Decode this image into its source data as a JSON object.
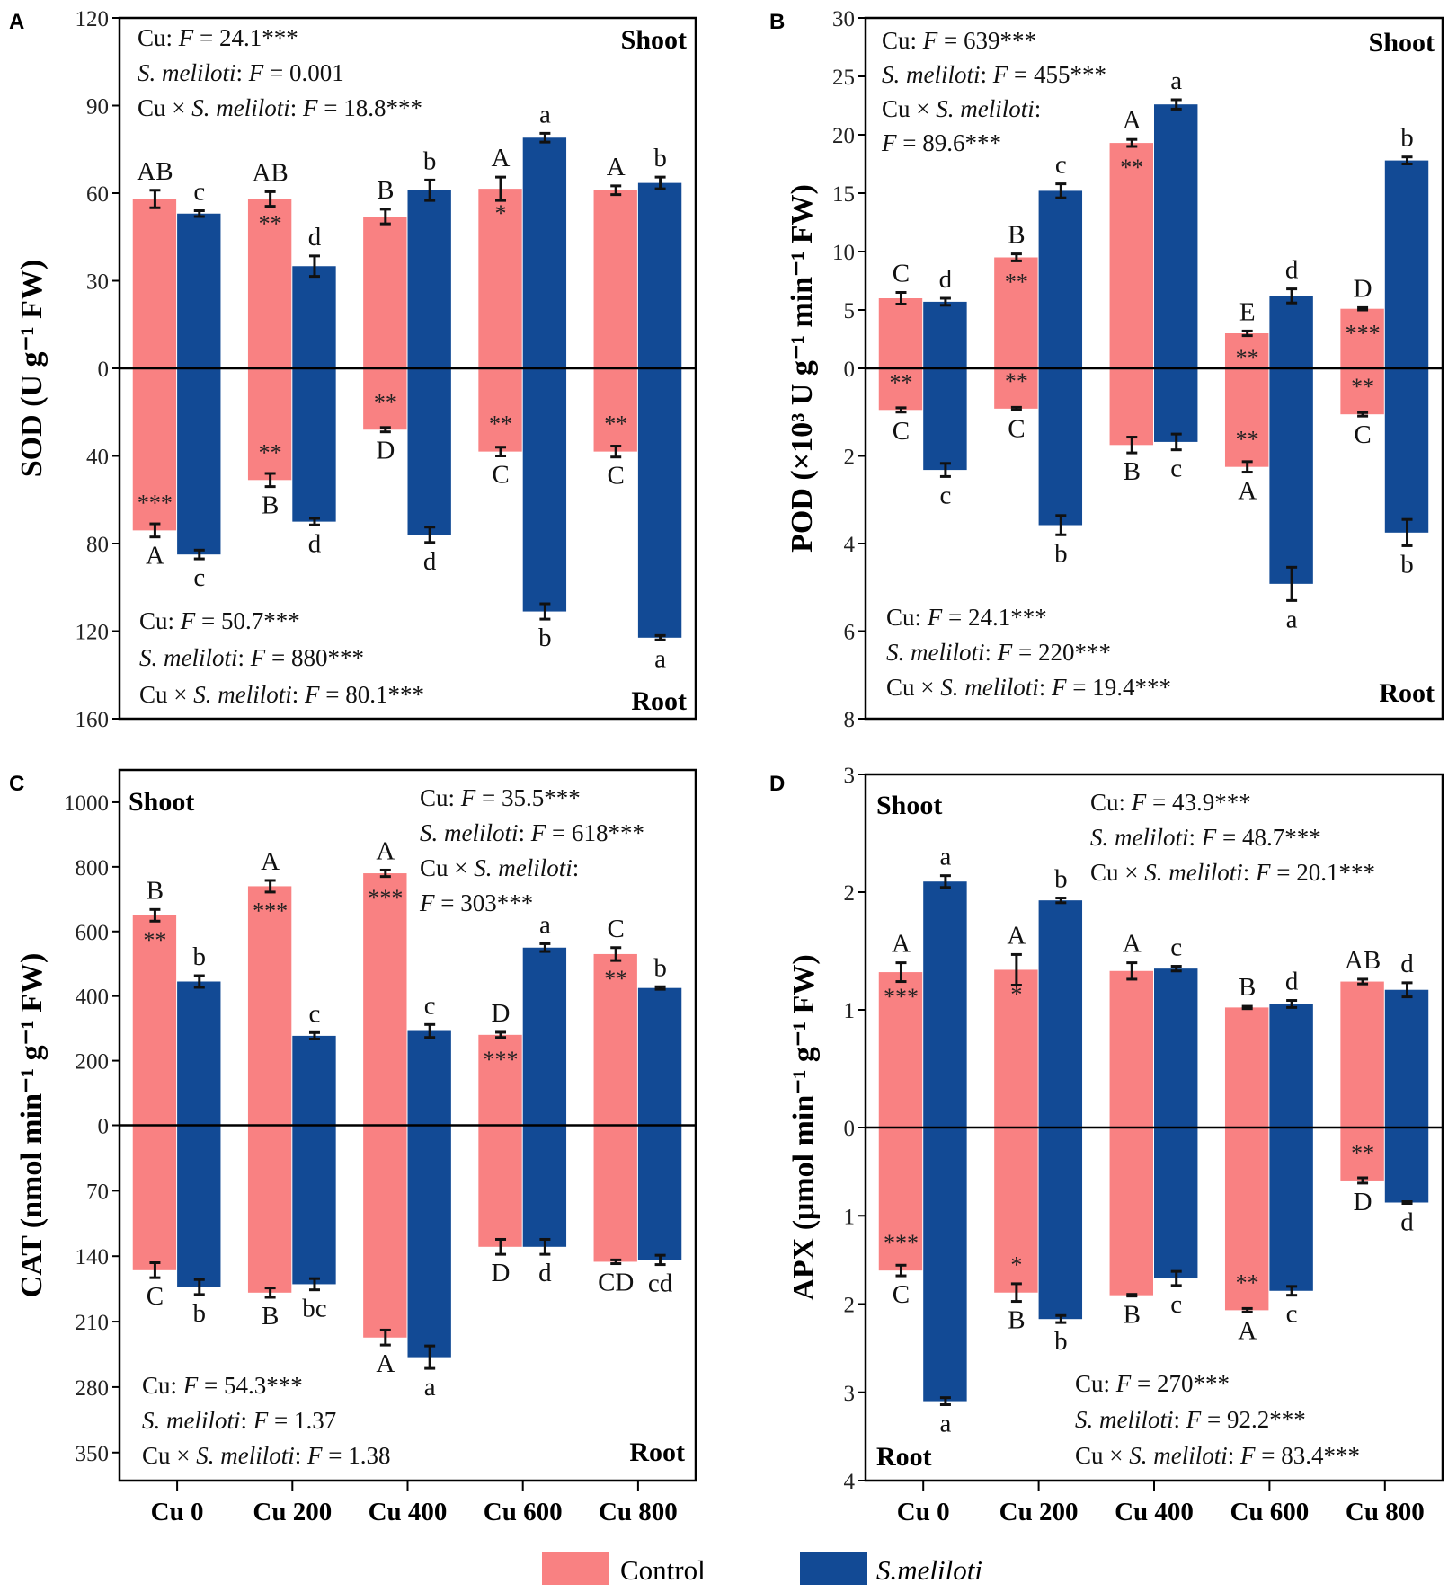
{
  "colors": {
    "control": "#F98182",
    "s_meliloti": "#124A95",
    "axis": "#000000"
  },
  "legend": {
    "placement": "bottom-center",
    "items": [
      {
        "label": "Control",
        "color": "#F98182"
      },
      {
        "label": "S.meliloti",
        "color": "#124A95"
      }
    ]
  },
  "chart_data": [
    {
      "type": "bar",
      "panel": "A",
      "ylabel": "SOD (U g⁻¹ FW)",
      "categories": [
        "Cu 0",
        "Cu 200",
        "Cu 400",
        "Cu 600",
        "Cu 800"
      ],
      "shoot_label": "Shoot",
      "root_label": "Root",
      "shoot_ylim": [
        0,
        120
      ],
      "root_ylim": [
        0,
        160
      ],
      "shoot_ticks": [
        "0",
        "30",
        "60",
        "90",
        "120"
      ],
      "root_ticks": [
        "40",
        "80",
        "120",
        "160"
      ],
      "shoot": {
        "control": {
          "values": [
            58,
            58,
            52,
            61.5,
            61
          ],
          "errors": [
            3,
            2.5,
            2.5,
            4,
            1.5
          ],
          "letters": [
            "AB",
            "AB",
            "B",
            "A",
            "A"
          ],
          "stars": [
            "",
            "**",
            "",
            "*",
            ""
          ]
        },
        "s_meliloti": {
          "values": [
            53,
            35,
            61,
            79,
            63.5
          ],
          "errors": [
            1,
            3.5,
            3.5,
            1.5,
            2
          ],
          "letters": [
            "c",
            "d",
            "b",
            "a",
            "b"
          ]
        }
      },
      "root": {
        "control": {
          "values": [
            74,
            51,
            28,
            38,
            38
          ],
          "errors": [
            3,
            3,
            1,
            2,
            2.5
          ],
          "letters": [
            "A",
            "B",
            "D",
            "C",
            "C"
          ],
          "stars": [
            "***",
            "**",
            "**",
            "**",
            "**"
          ]
        },
        "s_meliloti": {
          "values": [
            85,
            70,
            76,
            111,
            123
          ],
          "errors": [
            2,
            1.5,
            3.5,
            3.5,
            1
          ],
          "letters": [
            "c",
            "d",
            "d",
            "b",
            "a"
          ]
        }
      },
      "shoot_stats": [
        "Cu: F = 24.1***",
        "S. meliloti: F = 0.001",
        "Cu × S. meliloti: F = 18.8***"
      ],
      "root_stats": [
        "Cu: F = 50.7***",
        "S. meliloti: F = 880***",
        "Cu × S. meliloti: F = 80.1***"
      ]
    },
    {
      "type": "bar",
      "panel": "B",
      "ylabel": "POD (×10³ U g⁻¹ min⁻¹ FW)",
      "categories": [
        "Cu 0",
        "Cu 200",
        "Cu 400",
        "Cu 600",
        "Cu 800"
      ],
      "shoot_label": "Shoot",
      "root_label": "Root",
      "shoot_ylim": [
        0,
        30
      ],
      "root_ylim": [
        0,
        8
      ],
      "shoot_ticks": [
        "0",
        "5",
        "10",
        "15",
        "20",
        "25",
        "30"
      ],
      "root_ticks": [
        "2",
        "4",
        "6",
        "8"
      ],
      "shoot": {
        "control": {
          "values": [
            6,
            9.5,
            19.3,
            3,
            5.1
          ],
          "errors": [
            0.5,
            0.3,
            0.3,
            0.2,
            0.1
          ],
          "letters": [
            "C",
            "B",
            "A",
            "E",
            "D"
          ],
          "stars": [
            "",
            "**",
            "**",
            "**",
            "***"
          ]
        },
        "s_meliloti": {
          "values": [
            5.7,
            15.2,
            22.6,
            6.2,
            17.8
          ],
          "errors": [
            0.3,
            0.6,
            0.4,
            0.6,
            0.3
          ],
          "letters": [
            "d",
            "c",
            "a",
            "d",
            "b"
          ]
        }
      },
      "root": {
        "control": {
          "values": [
            0.95,
            0.92,
            1.75,
            2.25,
            1.05
          ],
          "errors": [
            0.05,
            0.03,
            0.18,
            0.12,
            0.04
          ],
          "letters": [
            "C",
            "C",
            "B",
            "A",
            "C"
          ],
          "stars": [
            "**",
            "**",
            "",
            "**",
            "**"
          ]
        },
        "s_meliloti": {
          "values": [
            2.32,
            3.58,
            1.68,
            4.92,
            3.75
          ],
          "errors": [
            0.15,
            0.22,
            0.18,
            0.38,
            0.3
          ],
          "letters": [
            "c",
            "b",
            "c",
            "a",
            "b"
          ]
        }
      },
      "shoot_stats": [
        "Cu: F = 639***",
        "S. meliloti: F = 455***",
        "Cu × S. meliloti:",
        "F = 89.6***"
      ],
      "root_stats": [
        "Cu: F = 24.1***",
        "S. meliloti: F = 220***",
        "Cu × S. meliloti: F = 19.4***"
      ]
    },
    {
      "type": "bar",
      "panel": "C",
      "ylabel": "CAT (nmol min⁻¹ g⁻¹ FW)",
      "categories": [
        "Cu 0",
        "Cu 200",
        "Cu 400",
        "Cu 600",
        "Cu 800"
      ],
      "shoot_label": "Shoot",
      "root_label": "Root",
      "shoot_ylim": [
        0,
        1100
      ],
      "root_ylim": [
        0,
        380
      ],
      "shoot_ticks": [
        "0",
        "200",
        "400",
        "600",
        "800",
        "1000"
      ],
      "root_ticks": [
        "70",
        "140",
        "210",
        "280",
        "350"
      ],
      "shoot": {
        "control": {
          "values": [
            650,
            740,
            780,
            280,
            530
          ],
          "errors": [
            18,
            18,
            10,
            8,
            20
          ],
          "letters": [
            "B",
            "A",
            "A",
            "D",
            "C"
          ],
          "stars": [
            "**",
            "***",
            "***",
            "***",
            "**"
          ]
        },
        "s_meliloti": {
          "values": [
            445,
            277,
            292,
            550,
            425
          ],
          "errors": [
            18,
            10,
            20,
            12,
            4
          ],
          "letters": [
            "b",
            "c",
            "c",
            "a",
            "b"
          ]
        }
      },
      "root": {
        "control": {
          "values": [
            155,
            179,
            227,
            130,
            146
          ],
          "errors": [
            8,
            5,
            8,
            8,
            2
          ],
          "letters": [
            "C",
            "B",
            "A",
            "D",
            "CD"
          ],
          "stars": [
            "",
            "",
            "",
            "",
            ""
          ]
        },
        "s_meliloti": {
          "values": [
            173,
            170,
            248,
            130,
            144
          ],
          "errors": [
            8,
            6,
            12,
            8,
            5
          ],
          "letters": [
            "b",
            "bc",
            "a",
            "d",
            "cd"
          ]
        }
      },
      "shoot_stats": [
        "Cu: F = 35.5***",
        "S. meliloti: F = 618***",
        "Cu × S. meliloti:",
        "F = 303***"
      ],
      "root_stats": [
        "Cu: F = 54.3***",
        "S. meliloti: F = 1.37",
        "Cu × S. meliloti: F = 1.38"
      ]
    },
    {
      "type": "bar",
      "panel": "D",
      "ylabel": "APX (μmol min⁻¹ g⁻¹ FW)",
      "categories": [
        "Cu 0",
        "Cu 200",
        "Cu 400",
        "Cu 600",
        "Cu 800"
      ],
      "shoot_label": "Shoot",
      "root_label": "Root",
      "shoot_ylim": [
        0,
        3
      ],
      "root_ylim": [
        0,
        4
      ],
      "shoot_ticks": [
        "0",
        "1",
        "2",
        "3"
      ],
      "root_ticks": [
        "1",
        "2",
        "3",
        "4"
      ],
      "shoot": {
        "control": {
          "values": [
            1.32,
            1.34,
            1.33,
            1.02,
            1.24
          ],
          "errors": [
            0.08,
            0.13,
            0.07,
            0.01,
            0.02
          ],
          "letters": [
            "A",
            "A",
            "A",
            "B",
            "AB"
          ],
          "stars": [
            "***",
            "*",
            "",
            "",
            ""
          ]
        },
        "s_meliloti": {
          "values": [
            2.09,
            1.93,
            1.35,
            1.05,
            1.17
          ],
          "errors": [
            0.05,
            0.02,
            0.02,
            0.03,
            0.06
          ],
          "letters": [
            "a",
            "b",
            "c",
            "d",
            "d"
          ]
        }
      },
      "root": {
        "control": {
          "values": [
            1.62,
            1.87,
            1.9,
            2.07,
            0.6
          ],
          "errors": [
            0.06,
            0.1,
            0.01,
            0.02,
            0.03
          ],
          "letters": [
            "C",
            "B",
            "B",
            "A",
            "D"
          ],
          "stars": [
            "***",
            "*",
            "",
            "**",
            "**"
          ]
        },
        "s_meliloti": {
          "values": [
            3.1,
            2.17,
            1.71,
            1.85,
            0.85
          ],
          "errors": [
            0.04,
            0.04,
            0.08,
            0.05,
            0.01
          ],
          "letters": [
            "a",
            "b",
            "c",
            "c",
            "d"
          ]
        }
      },
      "shoot_stats": [
        "Cu: F = 43.9***",
        "S. meliloti: F = 48.7***",
        "Cu × S. meliloti: F = 20.1***"
      ],
      "root_stats": [
        "Cu: F = 270***",
        "S. meliloti: F = 92.2***",
        "Cu × S. meliloti: F = 83.4***"
      ]
    }
  ]
}
